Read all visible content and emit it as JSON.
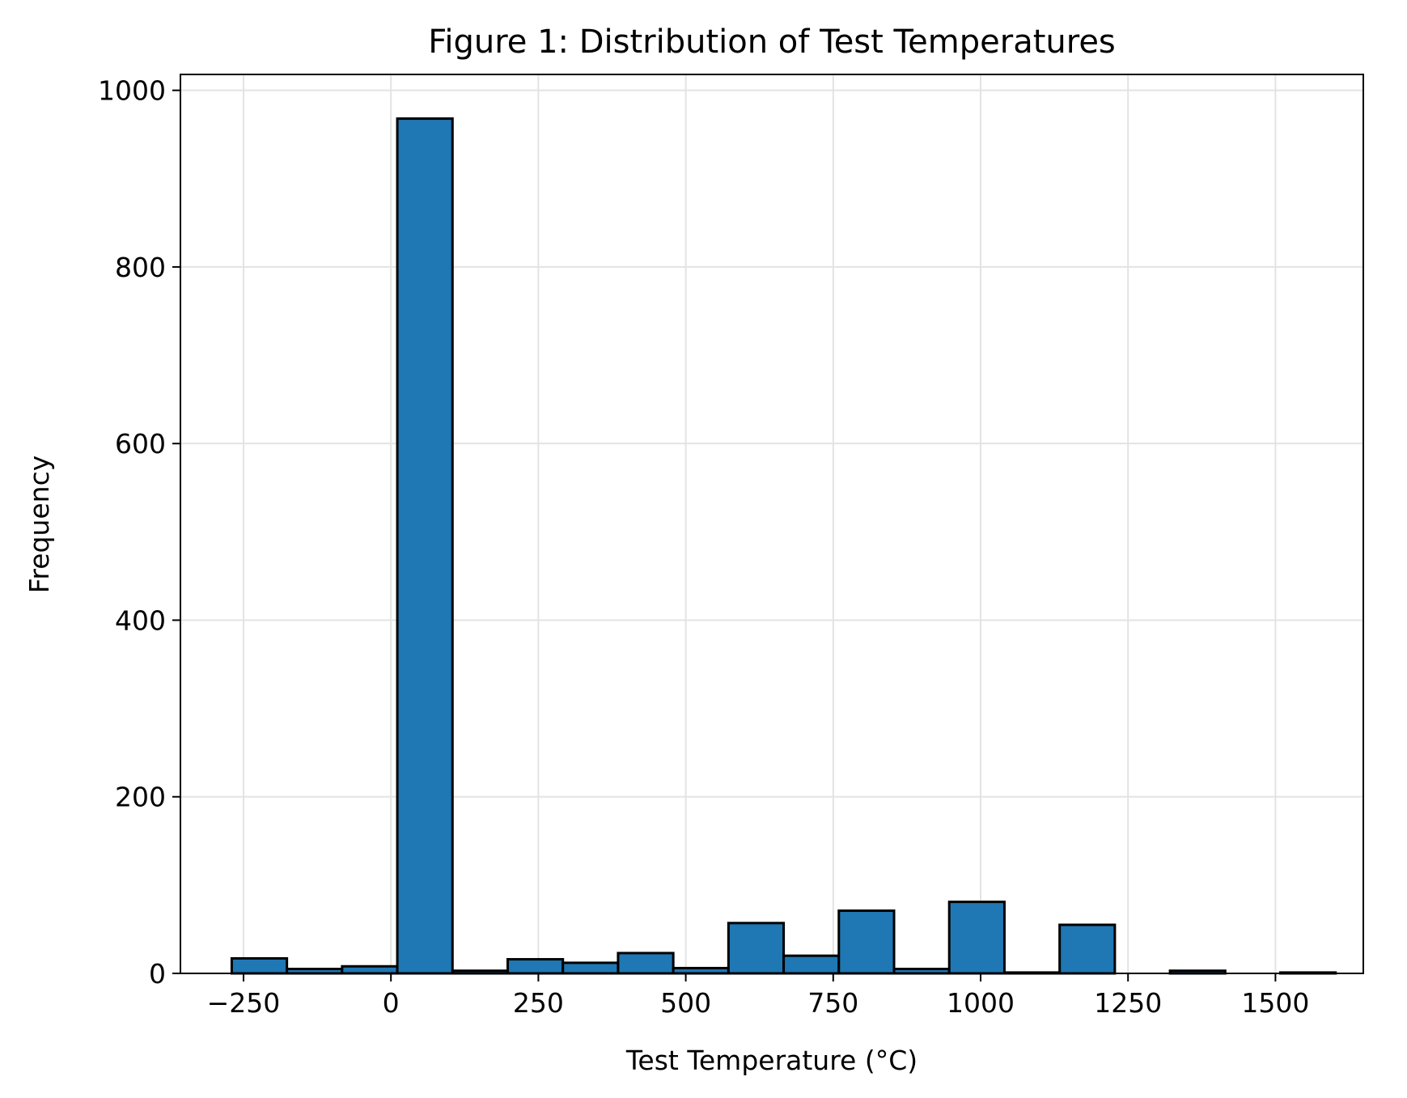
{
  "chart_data": {
    "type": "bar",
    "title": "Figure 1: Distribution of Test Temperatures",
    "xlabel": "Test Temperature (°C)",
    "ylabel": "Frequency",
    "xlim": [
      -357,
      1649
    ],
    "ylim": [
      0,
      1018
    ],
    "xticks": [
      -250,
      0,
      250,
      500,
      750,
      1000,
      1250,
      1500
    ],
    "xtick_labels": [
      "−250",
      "0",
      "250",
      "500",
      "750",
      "1000",
      "1250",
      "1500"
    ],
    "yticks": [
      0,
      200,
      400,
      600,
      800,
      1000
    ],
    "ytick_labels": [
      "0",
      "200",
      "400",
      "600",
      "800",
      "1000"
    ],
    "grid": true,
    "legend": "none",
    "bins": [
      {
        "x0": -270.0,
        "x1": -176.4,
        "count": 17
      },
      {
        "x0": -176.4,
        "x1": -82.8,
        "count": 5
      },
      {
        "x0": -82.8,
        "x1": 10.8,
        "count": 8
      },
      {
        "x0": 10.8,
        "x1": 104.4,
        "count": 968
      },
      {
        "x0": 104.4,
        "x1": 198.0,
        "count": 3
      },
      {
        "x0": 198.0,
        "x1": 291.6,
        "count": 16
      },
      {
        "x0": 291.6,
        "x1": 385.2,
        "count": 12
      },
      {
        "x0": 385.2,
        "x1": 478.8,
        "count": 23
      },
      {
        "x0": 478.8,
        "x1": 572.4,
        "count": 6
      },
      {
        "x0": 572.4,
        "x1": 666.0,
        "count": 57
      },
      {
        "x0": 666.0,
        "x1": 759.6,
        "count": 20
      },
      {
        "x0": 759.6,
        "x1": 853.2,
        "count": 71
      },
      {
        "x0": 853.2,
        "x1": 946.8,
        "count": 5
      },
      {
        "x0": 946.8,
        "x1": 1040.4,
        "count": 81
      },
      {
        "x0": 1040.4,
        "x1": 1134.0,
        "count": 1
      },
      {
        "x0": 1134.0,
        "x1": 1227.6,
        "count": 55
      },
      {
        "x0": 1227.6,
        "x1": 1321.2,
        "count": 0
      },
      {
        "x0": 1321.2,
        "x1": 1414.8,
        "count": 3
      },
      {
        "x0": 1414.8,
        "x1": 1508.4,
        "count": 0
      },
      {
        "x0": 1508.4,
        "x1": 1602.0,
        "count": 1
      }
    ],
    "colors": {
      "bar_fill": "#1f77b4",
      "bar_edge": "#000000",
      "grid": "#e3e3e3",
      "axes": "#000000"
    }
  }
}
